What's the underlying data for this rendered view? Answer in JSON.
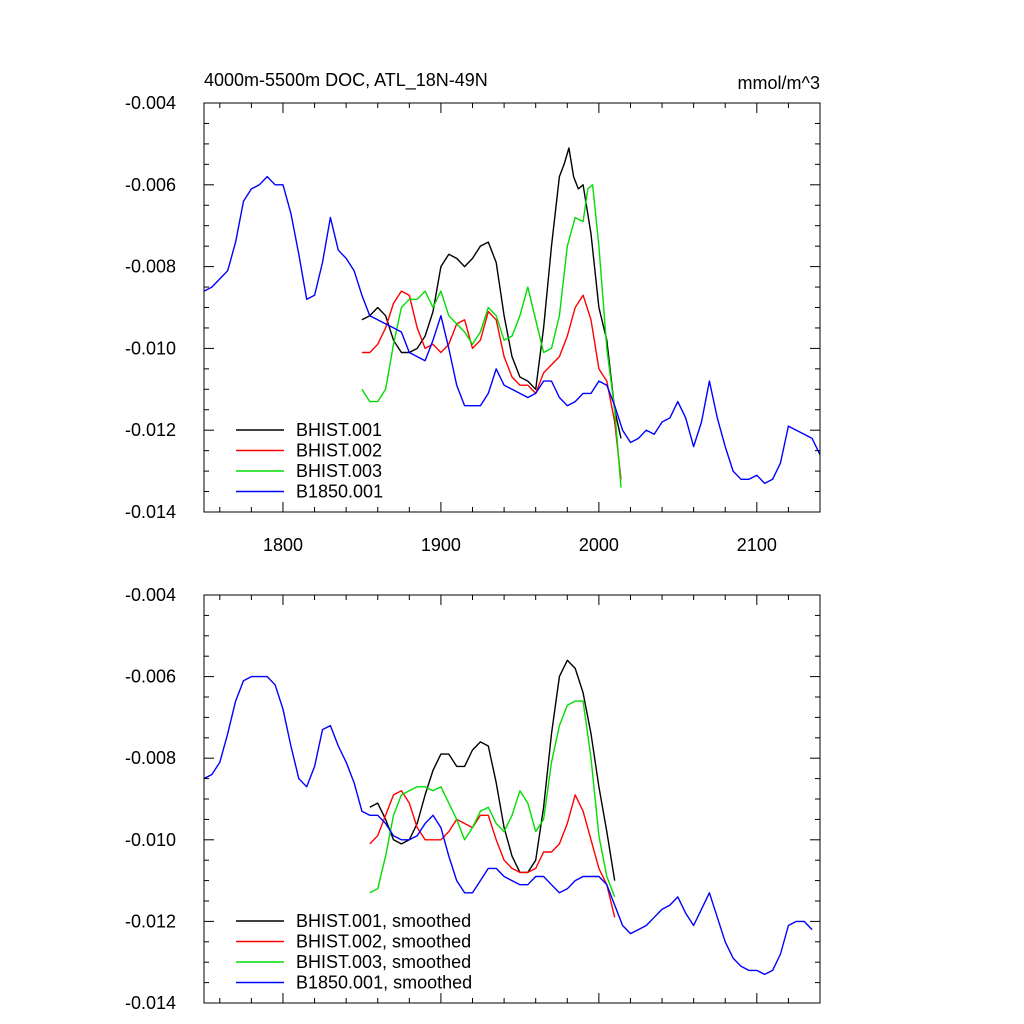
{
  "chart_data": [
    {
      "type": "line",
      "title": "4000m-5500m DOC, ATL_18N-49N",
      "units": "mmol/m^3",
      "xlim": [
        1750,
        2140
      ],
      "ylim": [
        -0.014,
        -0.004
      ],
      "x_ticks": [
        1800,
        1900,
        2000,
        2100
      ],
      "x_tick_labels": [
        "1800",
        "1900",
        "2000",
        "2100"
      ],
      "y_ticks": [
        -0.004,
        -0.006,
        -0.008,
        -0.01,
        -0.012,
        -0.014
      ],
      "y_tick_labels": [
        "-0.004",
        "-0.006",
        "-0.008",
        "-0.010",
        "-0.012",
        "-0.014"
      ],
      "legend_position": "bottom-left",
      "grid": false,
      "series": [
        {
          "name": "BHIST.001",
          "color": "#000000",
          "x": [
            1850,
            1855,
            1860,
            1865,
            1870,
            1875,
            1880,
            1885,
            1890,
            1895,
            1900,
            1905,
            1910,
            1915,
            1920,
            1925,
            1930,
            1935,
            1940,
            1945,
            1950,
            1955,
            1960,
            1965,
            1970,
            1975,
            1978,
            1981,
            1984,
            1987,
            1990,
            1995,
            2000,
            2005,
            2010,
            2014
          ],
          "y": [
            -0.0093,
            -0.0092,
            -0.009,
            -0.0092,
            -0.0098,
            -0.0101,
            -0.0101,
            -0.01,
            -0.0097,
            -0.0091,
            -0.008,
            -0.0077,
            -0.0078,
            -0.008,
            -0.0078,
            -0.0075,
            -0.0074,
            -0.0079,
            -0.0092,
            -0.0102,
            -0.0107,
            -0.0108,
            -0.011,
            -0.0095,
            -0.0075,
            -0.0058,
            -0.0055,
            -0.0051,
            -0.0058,
            -0.0061,
            -0.006,
            -0.0072,
            -0.009,
            -0.0098,
            -0.0115,
            -0.0122
          ]
        },
        {
          "name": "BHIST.002",
          "color": "#ff0000",
          "x": [
            1850,
            1855,
            1860,
            1865,
            1870,
            1875,
            1880,
            1885,
            1890,
            1895,
            1900,
            1905,
            1910,
            1915,
            1920,
            1925,
            1930,
            1935,
            1940,
            1945,
            1950,
            1955,
            1960,
            1965,
            1970,
            1975,
            1980,
            1985,
            1990,
            1995,
            2000,
            2005,
            2010,
            2014
          ],
          "y": [
            -0.0101,
            -0.0101,
            -0.0099,
            -0.0095,
            -0.0089,
            -0.0086,
            -0.0087,
            -0.0095,
            -0.01,
            -0.0099,
            -0.0101,
            -0.0099,
            -0.0094,
            -0.0093,
            -0.01,
            -0.0098,
            -0.0091,
            -0.0093,
            -0.0102,
            -0.0107,
            -0.0109,
            -0.0109,
            -0.0111,
            -0.0106,
            -0.0104,
            -0.0102,
            -0.0097,
            -0.009,
            -0.0087,
            -0.0093,
            -0.0105,
            -0.0108,
            -0.0118,
            -0.0132
          ]
        },
        {
          "name": "BHIST.003",
          "color": "#00dd00",
          "x": [
            1850,
            1855,
            1860,
            1865,
            1870,
            1875,
            1880,
            1885,
            1890,
            1895,
            1900,
            1905,
            1910,
            1915,
            1920,
            1925,
            1930,
            1935,
            1940,
            1945,
            1950,
            1955,
            1960,
            1965,
            1970,
            1975,
            1980,
            1985,
            1990,
            1993,
            1996,
            2000,
            2005,
            2010,
            2014
          ],
          "y": [
            -0.011,
            -0.0113,
            -0.0113,
            -0.011,
            -0.0099,
            -0.009,
            -0.0088,
            -0.0088,
            -0.0086,
            -0.009,
            -0.0086,
            -0.0092,
            -0.0094,
            -0.0096,
            -0.0099,
            -0.0096,
            -0.009,
            -0.0092,
            -0.0098,
            -0.0097,
            -0.0092,
            -0.0085,
            -0.0093,
            -0.0101,
            -0.01,
            -0.0092,
            -0.0075,
            -0.0068,
            -0.0069,
            -0.0061,
            -0.006,
            -0.0075,
            -0.01,
            -0.0115,
            -0.0134
          ]
        },
        {
          "name": "B1850.001",
          "color": "#0000ff",
          "x": [
            1750,
            1755,
            1760,
            1765,
            1770,
            1775,
            1780,
            1785,
            1790,
            1795,
            1800,
            1805,
            1810,
            1815,
            1820,
            1825,
            1830,
            1835,
            1840,
            1845,
            1850,
            1855,
            1860,
            1865,
            1870,
            1875,
            1880,
            1885,
            1890,
            1895,
            1900,
            1905,
            1910,
            1915,
            1920,
            1925,
            1930,
            1935,
            1940,
            1945,
            1950,
            1955,
            1960,
            1965,
            1970,
            1975,
            1980,
            1985,
            1990,
            1995,
            2000,
            2005,
            2010,
            2015,
            2020,
            2025,
            2030,
            2035,
            2040,
            2045,
            2050,
            2055,
            2060,
            2065,
            2070,
            2075,
            2080,
            2085,
            2090,
            2095,
            2100,
            2105,
            2110,
            2115,
            2120,
            2125,
            2130,
            2135,
            2140
          ],
          "y": [
            -0.0086,
            -0.0085,
            -0.0083,
            -0.0081,
            -0.0074,
            -0.0064,
            -0.0061,
            -0.006,
            -0.0058,
            -0.006,
            -0.006,
            -0.0067,
            -0.0077,
            -0.0088,
            -0.0087,
            -0.0079,
            -0.0068,
            -0.0076,
            -0.0078,
            -0.0081,
            -0.0087,
            -0.0092,
            -0.0093,
            -0.0094,
            -0.0095,
            -0.0096,
            -0.0101,
            -0.0102,
            -0.0103,
            -0.0098,
            -0.0092,
            -0.01,
            -0.0109,
            -0.0114,
            -0.0114,
            -0.0114,
            -0.0111,
            -0.0105,
            -0.0109,
            -0.011,
            -0.0111,
            -0.0112,
            -0.0111,
            -0.0108,
            -0.0108,
            -0.0112,
            -0.0114,
            -0.0113,
            -0.0111,
            -0.0111,
            -0.0108,
            -0.0109,
            -0.0114,
            -0.012,
            -0.0123,
            -0.0122,
            -0.012,
            -0.0121,
            -0.0118,
            -0.0117,
            -0.0113,
            -0.0117,
            -0.0124,
            -0.0118,
            -0.0108,
            -0.0117,
            -0.0124,
            -0.013,
            -0.0132,
            -0.0132,
            -0.0131,
            -0.0133,
            -0.0132,
            -0.0128,
            -0.0119,
            -0.012,
            -0.0121,
            -0.0122,
            -0.0126
          ]
        }
      ]
    },
    {
      "type": "line",
      "title": "",
      "xlim": [
        1750,
        2140
      ],
      "ylim": [
        -0.014,
        -0.004
      ],
      "x_ticks": [
        1800,
        1900,
        2000,
        2100
      ],
      "y_ticks": [
        -0.004,
        -0.006,
        -0.008,
        -0.01,
        -0.012,
        -0.014
      ],
      "y_tick_labels": [
        "-0.004",
        "-0.006",
        "-0.008",
        "-0.010",
        "-0.012",
        "-0.014"
      ],
      "legend_position": "bottom-left",
      "grid": false,
      "series": [
        {
          "name": "BHIST.001, smoothed",
          "color": "#000000",
          "x": [
            1855,
            1860,
            1865,
            1870,
            1875,
            1880,
            1885,
            1890,
            1895,
            1900,
            1905,
            1910,
            1915,
            1920,
            1925,
            1930,
            1935,
            1940,
            1945,
            1950,
            1955,
            1960,
            1965,
            1970,
            1975,
            1980,
            1985,
            1990,
            1995,
            2000,
            2005,
            2010
          ],
          "y": [
            -0.0092,
            -0.0091,
            -0.0095,
            -0.01,
            -0.0101,
            -0.01,
            -0.0096,
            -0.0089,
            -0.0083,
            -0.0079,
            -0.0079,
            -0.0082,
            -0.0082,
            -0.0078,
            -0.0076,
            -0.0077,
            -0.0086,
            -0.0097,
            -0.0104,
            -0.0108,
            -0.0108,
            -0.0105,
            -0.0092,
            -0.0074,
            -0.006,
            -0.0056,
            -0.0058,
            -0.0064,
            -0.0074,
            -0.0087,
            -0.0098,
            -0.011
          ]
        },
        {
          "name": "BHIST.002, smoothed",
          "color": "#ff0000",
          "x": [
            1855,
            1860,
            1865,
            1870,
            1875,
            1880,
            1885,
            1890,
            1895,
            1900,
            1905,
            1910,
            1915,
            1920,
            1925,
            1930,
            1935,
            1940,
            1945,
            1950,
            1955,
            1960,
            1965,
            1970,
            1975,
            1980,
            1985,
            1990,
            1995,
            2000,
            2005,
            2010
          ],
          "y": [
            -0.0101,
            -0.0099,
            -0.0094,
            -0.0089,
            -0.0088,
            -0.0091,
            -0.0097,
            -0.01,
            -0.01,
            -0.01,
            -0.0098,
            -0.0095,
            -0.0096,
            -0.0097,
            -0.0094,
            -0.0094,
            -0.01,
            -0.0105,
            -0.0107,
            -0.0108,
            -0.0108,
            -0.0107,
            -0.0103,
            -0.0103,
            -0.0101,
            -0.0096,
            -0.0089,
            -0.0093,
            -0.01,
            -0.0107,
            -0.0111,
            -0.0119
          ]
        },
        {
          "name": "BHIST.003, smoothed",
          "color": "#00dd00",
          "x": [
            1855,
            1860,
            1865,
            1870,
            1875,
            1880,
            1885,
            1890,
            1895,
            1900,
            1905,
            1910,
            1915,
            1920,
            1925,
            1930,
            1935,
            1940,
            1945,
            1950,
            1955,
            1960,
            1965,
            1970,
            1975,
            1980,
            1985,
            1990,
            1995,
            2000,
            2005,
            2010
          ],
          "y": [
            -0.0113,
            -0.0112,
            -0.0104,
            -0.0094,
            -0.0089,
            -0.0088,
            -0.0087,
            -0.0087,
            -0.0088,
            -0.0087,
            -0.0091,
            -0.0095,
            -0.01,
            -0.0097,
            -0.0093,
            -0.0092,
            -0.0096,
            -0.0098,
            -0.0094,
            -0.0088,
            -0.0091,
            -0.0098,
            -0.0095,
            -0.0081,
            -0.0072,
            -0.0067,
            -0.0066,
            -0.0066,
            -0.008,
            -0.0099,
            -0.0109,
            -0.0114
          ]
        },
        {
          "name": "B1850.001, smoothed",
          "color": "#0000ff",
          "x": [
            1750,
            1755,
            1760,
            1765,
            1770,
            1775,
            1780,
            1785,
            1790,
            1795,
            1800,
            1805,
            1810,
            1815,
            1820,
            1825,
            1830,
            1835,
            1840,
            1845,
            1850,
            1855,
            1860,
            1865,
            1870,
            1875,
            1880,
            1885,
            1890,
            1895,
            1900,
            1905,
            1910,
            1915,
            1920,
            1925,
            1930,
            1935,
            1940,
            1945,
            1950,
            1955,
            1960,
            1965,
            1970,
            1975,
            1980,
            1985,
            1990,
            1995,
            2000,
            2005,
            2010,
            2015,
            2020,
            2025,
            2030,
            2035,
            2040,
            2045,
            2050,
            2055,
            2060,
            2065,
            2070,
            2075,
            2080,
            2085,
            2090,
            2095,
            2100,
            2105,
            2110,
            2115,
            2120,
            2125,
            2130,
            2135
          ],
          "y": [
            -0.0085,
            -0.0084,
            -0.0081,
            -0.0074,
            -0.0066,
            -0.0061,
            -0.006,
            -0.006,
            -0.006,
            -0.0062,
            -0.0068,
            -0.0077,
            -0.0085,
            -0.0087,
            -0.0082,
            -0.0073,
            -0.0072,
            -0.0077,
            -0.0081,
            -0.0086,
            -0.0093,
            -0.0094,
            -0.0094,
            -0.0096,
            -0.0099,
            -0.01,
            -0.01,
            -0.0099,
            -0.0096,
            -0.0094,
            -0.0097,
            -0.0104,
            -0.011,
            -0.0113,
            -0.0113,
            -0.011,
            -0.0107,
            -0.0107,
            -0.0109,
            -0.011,
            -0.0111,
            -0.0111,
            -0.0109,
            -0.0109,
            -0.0111,
            -0.0113,
            -0.0112,
            -0.011,
            -0.0109,
            -0.0109,
            -0.0109,
            -0.0111,
            -0.0116,
            -0.0121,
            -0.0123,
            -0.0122,
            -0.0121,
            -0.0119,
            -0.0117,
            -0.0116,
            -0.0114,
            -0.0118,
            -0.0121,
            -0.0117,
            -0.0113,
            -0.0119,
            -0.0125,
            -0.0129,
            -0.0131,
            -0.0132,
            -0.0132,
            -0.0133,
            -0.0132,
            -0.0128,
            -0.0121,
            -0.012,
            -0.012,
            -0.0122
          ]
        }
      ]
    }
  ]
}
